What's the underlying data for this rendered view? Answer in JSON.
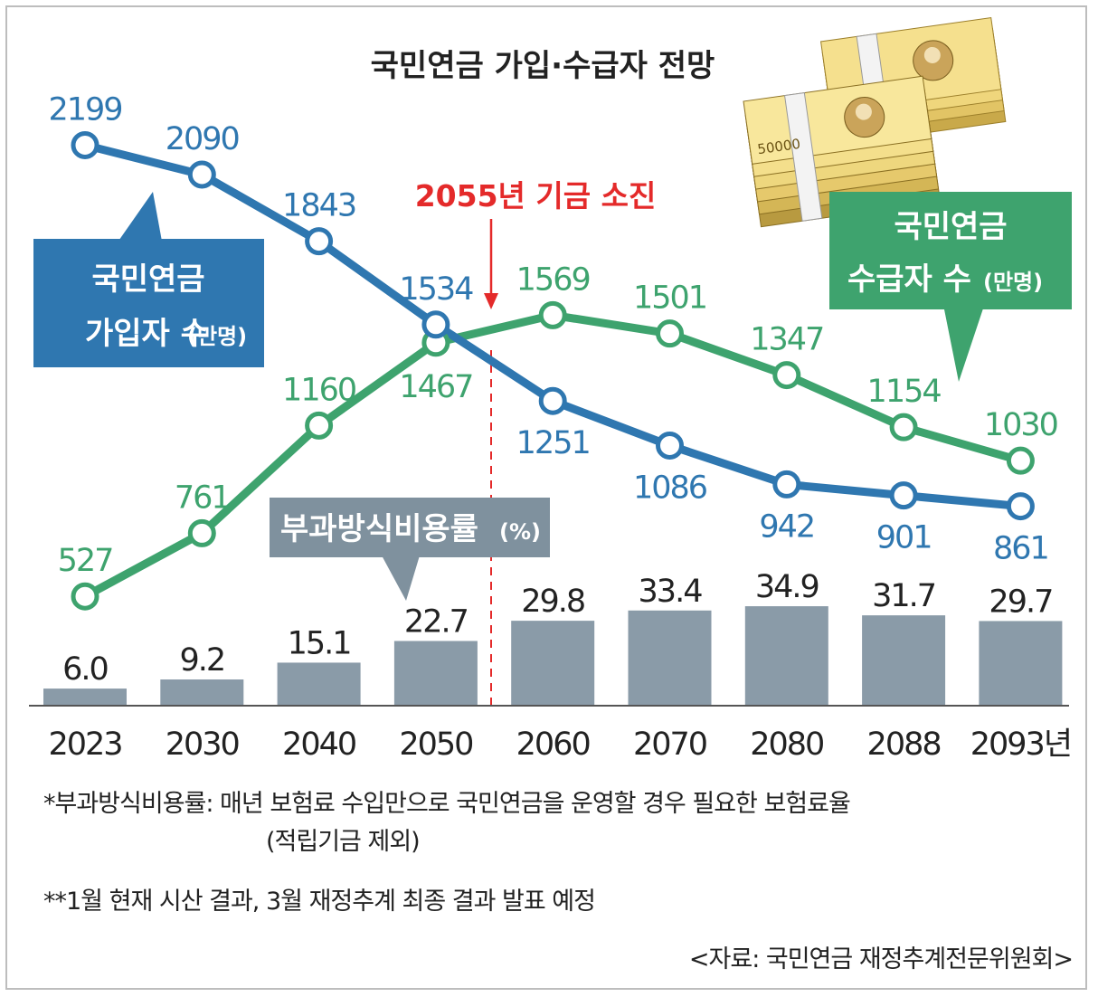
{
  "title": "국민연금 가입·수급자 전망",
  "fund_depletion_label": "2055년 기금 소진",
  "subscriber_label": {
    "line1": "국민연금",
    "line2": "가입자 수",
    "unit": "(만명)"
  },
  "recipient_label": {
    "line1": "국민연금",
    "line2": "수급자 수",
    "unit": "(만명)"
  },
  "bar_label": {
    "text": "부과방식비용률",
    "unit": "(%)"
  },
  "year_suffix": "년",
  "colors": {
    "subscribers": "#2f77b0",
    "recipients": "#3ea36e",
    "bars": "#8a9ba8",
    "fund": "#e42a2a",
    "bar_label_bg": "#7f919e"
  },
  "chart_data": {
    "type": "line+bar",
    "categories": [
      "2023",
      "2030",
      "2040",
      "2050",
      "2060",
      "2070",
      "2080",
      "2088",
      "2093"
    ],
    "series": [
      {
        "name": "국민연금 가입자 수(만명)",
        "type": "line",
        "values": [
          2199,
          2090,
          1843,
          1534,
          1251,
          1086,
          942,
          901,
          861
        ]
      },
      {
        "name": "국민연금 수급자 수(만명)",
        "type": "line",
        "values": [
          527,
          761,
          1160,
          1467,
          1569,
          1501,
          1347,
          1154,
          1030
        ]
      },
      {
        "name": "부과방식비용률(%)",
        "type": "bar",
        "values": [
          6.0,
          9.2,
          15.1,
          22.7,
          29.8,
          33.4,
          34.9,
          31.7,
          29.7
        ],
        "labels": [
          "6.0",
          "9.2",
          "15.1",
          "22.7",
          "29.8",
          "33.4",
          "34.9",
          "31.7",
          "29.7"
        ]
      }
    ],
    "annotation": {
      "text": "2055년 기금 소진",
      "x": "2055"
    }
  },
  "notes": {
    "note1": "*부과방식비용률: 매년 보험료 수입만으로 국민연금을 운영할 경우 필요한 보험료율",
    "note1b": "(적립기금 제외)",
    "note2": "**1월 현재 시산 결과, 3월 재정추계 최종 결과 발표 예정",
    "source": "<자료: 국민연금 재정추계전문위원회>"
  },
  "illustration": {
    "banknote_denomination": "50000"
  }
}
